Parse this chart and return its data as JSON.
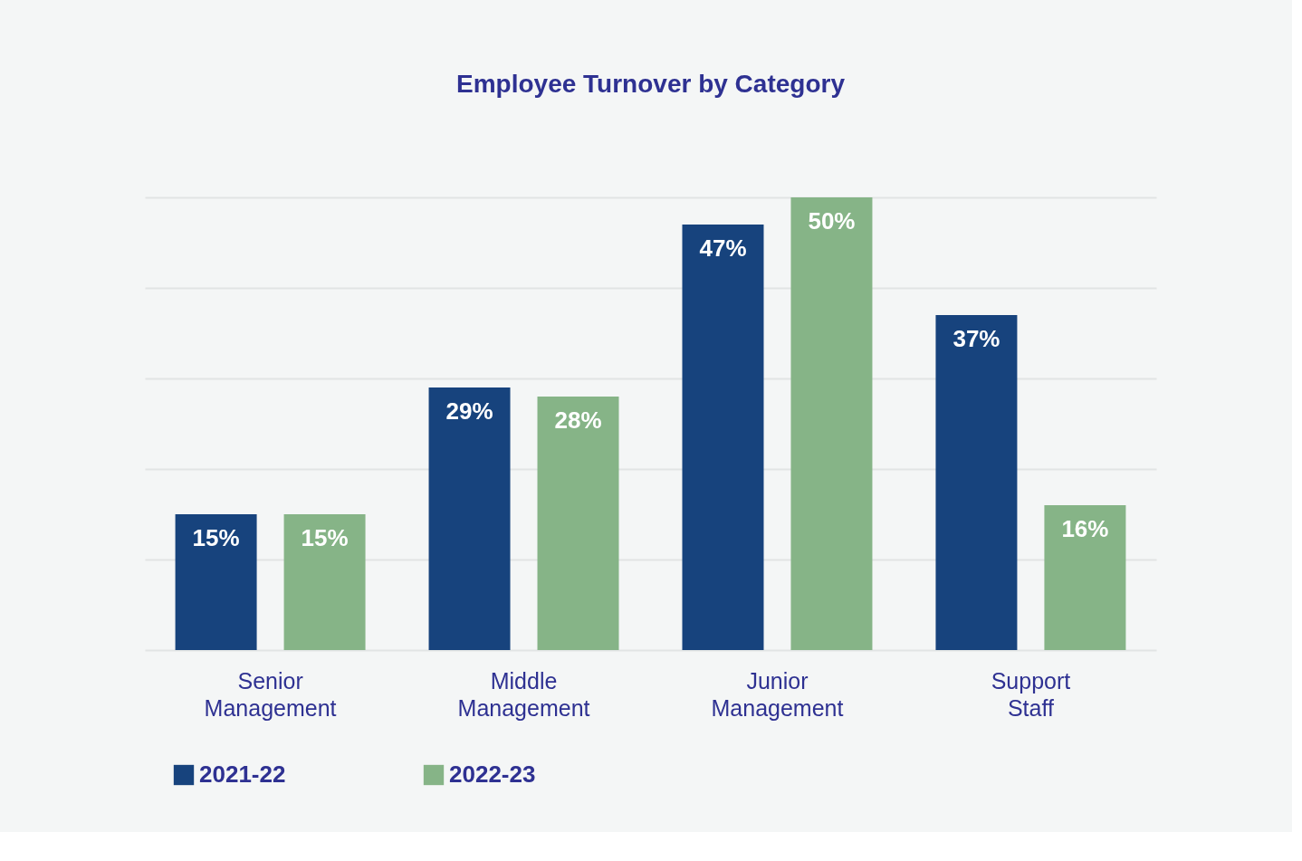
{
  "chart_data": {
    "type": "bar",
    "title": "Employee Turnover by Category",
    "categories": [
      "Senior Management",
      "Middle Management",
      "Junior Management",
      "Support Staff"
    ],
    "series": [
      {
        "name": "2021-22",
        "color": "#17437d",
        "values": [
          15,
          29,
          47,
          37
        ],
        "value_labels": [
          "15%",
          "29%",
          "47%",
          "37%"
        ]
      },
      {
        "name": "2022-23",
        "color": "#86b487",
        "values": [
          15,
          28,
          50,
          16
        ],
        "value_labels": [
          "15%",
          "28%",
          "50%",
          "16%"
        ]
      }
    ],
    "ylim": [
      0,
      50
    ],
    "yticks": [
      {
        "value": 0,
        "label": null
      },
      {
        "value": 10,
        "label": null
      },
      {
        "value": 20,
        "label": null
      },
      {
        "value": 30,
        "label": null
      },
      {
        "value": 40,
        "label": null
      },
      {
        "value": 50,
        "label": null
      }
    ],
    "tick_labels": "x",
    "grid": "y",
    "legend": "bottom"
  }
}
